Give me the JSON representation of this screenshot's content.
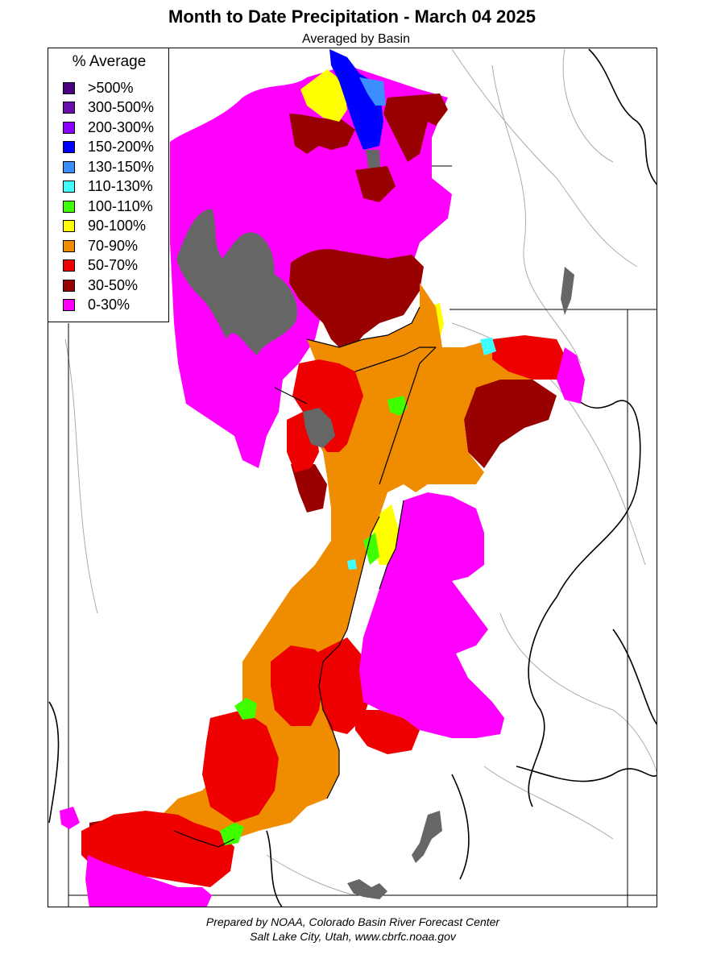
{
  "title": "Month to Date Precipitation - March 04 2025",
  "subtitle": "Averaged by Basin",
  "legend": {
    "title": "% Average",
    "items": [
      {
        "label": ">500%",
        "color": "#4b0082"
      },
      {
        "label": "300-500%",
        "color": "#6a0dad"
      },
      {
        "label": "200-300%",
        "color": "#8b00ff"
      },
      {
        "label": "150-200%",
        "color": "#0000ff"
      },
      {
        "label": "130-150%",
        "color": "#3c8eff"
      },
      {
        "label": "110-130%",
        "color": "#40ffff"
      },
      {
        "label": "100-110%",
        "color": "#40ff00"
      },
      {
        "label": "90-100%",
        "color": "#ffff00"
      },
      {
        "label": "70-90%",
        "color": "#f08c00"
      },
      {
        "label": "50-70%",
        "color": "#ee0000"
      },
      {
        "label": "30-50%",
        "color": "#990000"
      },
      {
        "label": "0-30%",
        "color": "#ff00ff"
      }
    ]
  },
  "footer": {
    "line1": "Prepared by NOAA, Colorado Basin River Forecast Center",
    "line2": "Salt Lake City, Utah, www.cbrfc.noaa.gov"
  },
  "colors": {
    "no_data_lakes": "#666666",
    "state_boundaries": "#000000",
    "rivers": "#aaaaaa"
  }
}
